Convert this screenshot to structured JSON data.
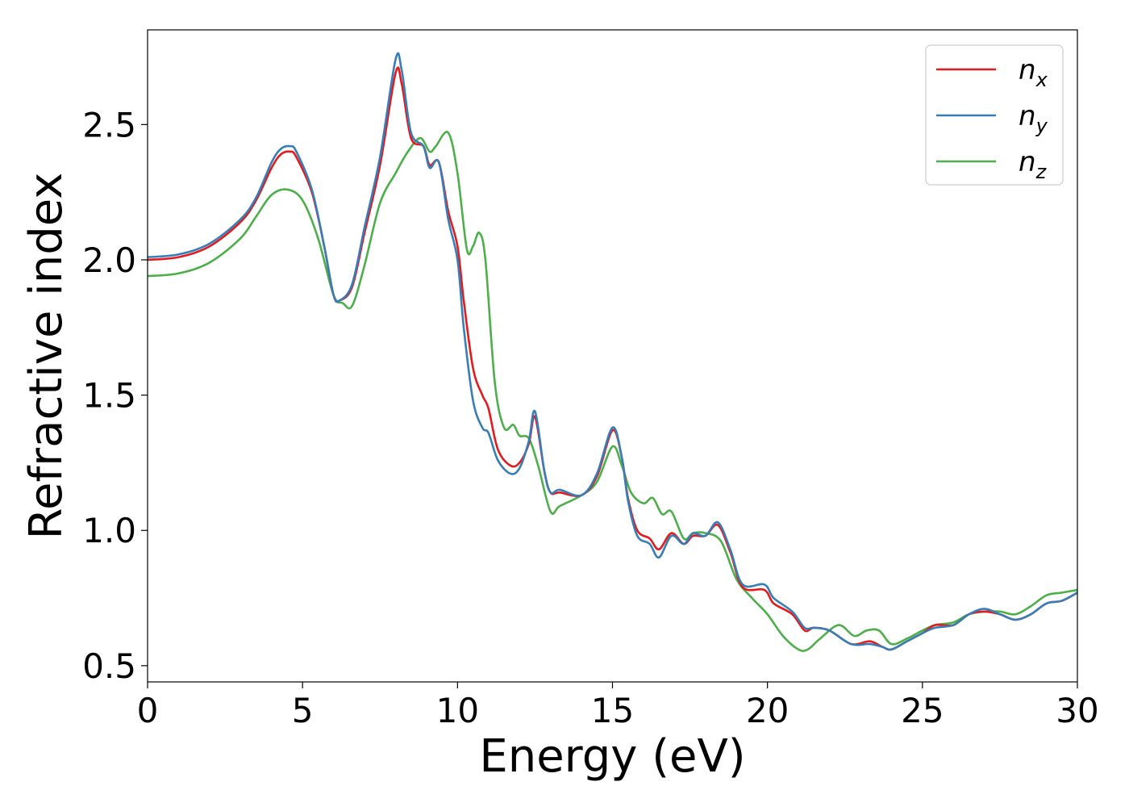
{
  "chart_data": {
    "type": "line",
    "title": "",
    "xlabel": "Energy (eV)",
    "ylabel": "Refractive index",
    "xlim": [
      0,
      30
    ],
    "ylim": [
      0.44,
      2.85
    ],
    "xticks": [
      0,
      5,
      10,
      15,
      20,
      25,
      30
    ],
    "xtick_labels": [
      "0",
      "5",
      "10",
      "15",
      "20",
      "25",
      "30"
    ],
    "yticks": [
      0.5,
      1.0,
      1.5,
      2.0,
      2.5
    ],
    "ytick_labels": [
      "0.5",
      "1.0",
      "1.5",
      "2.0",
      "2.5"
    ],
    "grid": false,
    "legend": "top-right",
    "series": [
      {
        "name": "n",
        "sub": "x",
        "color": "#e41a1c",
        "points": [
          [
            0,
            2.0
          ],
          [
            1,
            2.01
          ],
          [
            2,
            2.05
          ],
          [
            3,
            2.14
          ],
          [
            3.5,
            2.22
          ],
          [
            4,
            2.34
          ],
          [
            4.3,
            2.39
          ],
          [
            4.6,
            2.4
          ],
          [
            4.8,
            2.38
          ],
          [
            5.3,
            2.25
          ],
          [
            5.7,
            2.05
          ],
          [
            6.0,
            1.87
          ],
          [
            6.2,
            1.85
          ],
          [
            6.6,
            1.9
          ],
          [
            7.0,
            2.1
          ],
          [
            7.5,
            2.35
          ],
          [
            8.0,
            2.69
          ],
          [
            8.2,
            2.65
          ],
          [
            8.5,
            2.45
          ],
          [
            8.9,
            2.42
          ],
          [
            9.1,
            2.35
          ],
          [
            9.4,
            2.36
          ],
          [
            9.7,
            2.18
          ],
          [
            10.0,
            2.05
          ],
          [
            10.2,
            1.85
          ],
          [
            10.5,
            1.6
          ],
          [
            10.8,
            1.5
          ],
          [
            11.0,
            1.45
          ],
          [
            11.3,
            1.3
          ],
          [
            11.7,
            1.24
          ],
          [
            12.0,
            1.25
          ],
          [
            12.3,
            1.32
          ],
          [
            12.5,
            1.42
          ],
          [
            12.8,
            1.22
          ],
          [
            13.0,
            1.14
          ],
          [
            13.3,
            1.14
          ],
          [
            14.0,
            1.13
          ],
          [
            14.5,
            1.2
          ],
          [
            15.0,
            1.37
          ],
          [
            15.3,
            1.27
          ],
          [
            15.5,
            1.12
          ],
          [
            15.8,
            1.0
          ],
          [
            16.2,
            0.97
          ],
          [
            16.5,
            0.93
          ],
          [
            16.9,
            0.99
          ],
          [
            17.3,
            0.95
          ],
          [
            17.6,
            0.98
          ],
          [
            18.0,
            0.98
          ],
          [
            18.4,
            1.02
          ],
          [
            18.8,
            0.92
          ],
          [
            19.2,
            0.79
          ],
          [
            19.9,
            0.78
          ],
          [
            20.2,
            0.73
          ],
          [
            20.8,
            0.69
          ],
          [
            21.2,
            0.63
          ],
          [
            21.5,
            0.64
          ],
          [
            22.0,
            0.63
          ],
          [
            22.7,
            0.58
          ],
          [
            23.3,
            0.59
          ],
          [
            23.7,
            0.57
          ],
          [
            24.0,
            0.56
          ],
          [
            24.5,
            0.59
          ],
          [
            25.0,
            0.62
          ],
          [
            25.4,
            0.65
          ],
          [
            26.0,
            0.65
          ],
          [
            26.5,
            0.69
          ],
          [
            27.0,
            0.7
          ],
          [
            27.5,
            0.69
          ],
          [
            28.0,
            0.67
          ],
          [
            28.5,
            0.69
          ],
          [
            29.0,
            0.73
          ],
          [
            29.5,
            0.74
          ],
          [
            30.0,
            0.77
          ]
        ]
      },
      {
        "name": "n",
        "sub": "y",
        "color": "#377eb8",
        "points": [
          [
            0,
            2.01
          ],
          [
            1,
            2.02
          ],
          [
            2,
            2.06
          ],
          [
            3,
            2.15
          ],
          [
            3.5,
            2.23
          ],
          [
            4,
            2.36
          ],
          [
            4.3,
            2.41
          ],
          [
            4.6,
            2.42
          ],
          [
            4.8,
            2.4
          ],
          [
            5.3,
            2.26
          ],
          [
            5.7,
            2.05
          ],
          [
            6.0,
            1.87
          ],
          [
            6.2,
            1.85
          ],
          [
            6.6,
            1.91
          ],
          [
            7.0,
            2.12
          ],
          [
            7.5,
            2.38
          ],
          [
            8.0,
            2.74
          ],
          [
            8.2,
            2.7
          ],
          [
            8.5,
            2.47
          ],
          [
            8.9,
            2.42
          ],
          [
            9.1,
            2.34
          ],
          [
            9.4,
            2.36
          ],
          [
            9.7,
            2.15
          ],
          [
            10.0,
            2.0
          ],
          [
            10.2,
            1.75
          ],
          [
            10.5,
            1.48
          ],
          [
            10.8,
            1.38
          ],
          [
            11.0,
            1.36
          ],
          [
            11.3,
            1.26
          ],
          [
            11.7,
            1.21
          ],
          [
            12.0,
            1.23
          ],
          [
            12.3,
            1.33
          ],
          [
            12.5,
            1.44
          ],
          [
            12.8,
            1.22
          ],
          [
            13.0,
            1.14
          ],
          [
            13.3,
            1.15
          ],
          [
            14.0,
            1.13
          ],
          [
            14.5,
            1.21
          ],
          [
            15.0,
            1.38
          ],
          [
            15.3,
            1.27
          ],
          [
            15.5,
            1.11
          ],
          [
            15.8,
            0.98
          ],
          [
            16.2,
            0.95
          ],
          [
            16.5,
            0.9
          ],
          [
            16.9,
            0.98
          ],
          [
            17.3,
            0.95
          ],
          [
            17.6,
            0.99
          ],
          [
            18.0,
            0.98
          ],
          [
            18.4,
            1.03
          ],
          [
            18.8,
            0.93
          ],
          [
            19.2,
            0.8
          ],
          [
            19.9,
            0.8
          ],
          [
            20.2,
            0.75
          ],
          [
            20.8,
            0.7
          ],
          [
            21.2,
            0.64
          ],
          [
            21.5,
            0.64
          ],
          [
            22.0,
            0.63
          ],
          [
            22.7,
            0.58
          ],
          [
            23.3,
            0.58
          ],
          [
            23.7,
            0.57
          ],
          [
            24.0,
            0.56
          ],
          [
            24.5,
            0.59
          ],
          [
            25.0,
            0.62
          ],
          [
            25.4,
            0.64
          ],
          [
            26.0,
            0.65
          ],
          [
            26.5,
            0.69
          ],
          [
            27.0,
            0.71
          ],
          [
            27.5,
            0.69
          ],
          [
            28.0,
            0.67
          ],
          [
            28.5,
            0.69
          ],
          [
            29.0,
            0.73
          ],
          [
            29.5,
            0.74
          ],
          [
            30.0,
            0.77
          ]
        ]
      },
      {
        "name": "n",
        "sub": "z",
        "color": "#4daf4a",
        "points": [
          [
            0,
            1.94
          ],
          [
            1,
            1.95
          ],
          [
            2,
            1.99
          ],
          [
            3,
            2.08
          ],
          [
            3.5,
            2.16
          ],
          [
            4,
            2.24
          ],
          [
            4.5,
            2.26
          ],
          [
            5.0,
            2.22
          ],
          [
            5.5,
            2.08
          ],
          [
            6.0,
            1.87
          ],
          [
            6.3,
            1.84
          ],
          [
            6.6,
            1.83
          ],
          [
            7.0,
            1.98
          ],
          [
            7.5,
            2.21
          ],
          [
            8.0,
            2.32
          ],
          [
            8.4,
            2.4
          ],
          [
            8.8,
            2.45
          ],
          [
            9.1,
            2.4
          ],
          [
            9.3,
            2.42
          ],
          [
            9.7,
            2.47
          ],
          [
            10.0,
            2.32
          ],
          [
            10.3,
            2.04
          ],
          [
            10.5,
            2.05
          ],
          [
            10.7,
            2.1
          ],
          [
            10.9,
            2.0
          ],
          [
            11.2,
            1.55
          ],
          [
            11.5,
            1.38
          ],
          [
            11.8,
            1.39
          ],
          [
            12.0,
            1.35
          ],
          [
            12.3,
            1.34
          ],
          [
            12.6,
            1.24
          ],
          [
            13.0,
            1.07
          ],
          [
            13.3,
            1.09
          ],
          [
            14.0,
            1.13
          ],
          [
            14.5,
            1.18
          ],
          [
            15.0,
            1.31
          ],
          [
            15.3,
            1.24
          ],
          [
            15.6,
            1.14
          ],
          [
            16.0,
            1.1
          ],
          [
            16.3,
            1.12
          ],
          [
            16.6,
            1.06
          ],
          [
            16.9,
            1.07
          ],
          [
            17.3,
            0.97
          ],
          [
            17.6,
            0.99
          ],
          [
            18.0,
            0.99
          ],
          [
            18.5,
            0.96
          ],
          [
            19.0,
            0.82
          ],
          [
            19.5,
            0.75
          ],
          [
            20.0,
            0.69
          ],
          [
            20.5,
            0.61
          ],
          [
            21.0,
            0.56
          ],
          [
            21.3,
            0.56
          ],
          [
            21.7,
            0.6
          ],
          [
            22.3,
            0.65
          ],
          [
            22.8,
            0.61
          ],
          [
            23.2,
            0.63
          ],
          [
            23.6,
            0.63
          ],
          [
            24.0,
            0.58
          ],
          [
            24.5,
            0.6
          ],
          [
            25.0,
            0.63
          ],
          [
            25.4,
            0.65
          ],
          [
            26.0,
            0.66
          ],
          [
            26.5,
            0.69
          ],
          [
            27.0,
            0.7
          ],
          [
            27.5,
            0.7
          ],
          [
            28.0,
            0.69
          ],
          [
            28.5,
            0.72
          ],
          [
            29.0,
            0.76
          ],
          [
            29.5,
            0.77
          ],
          [
            30.0,
            0.78
          ]
        ]
      }
    ]
  }
}
